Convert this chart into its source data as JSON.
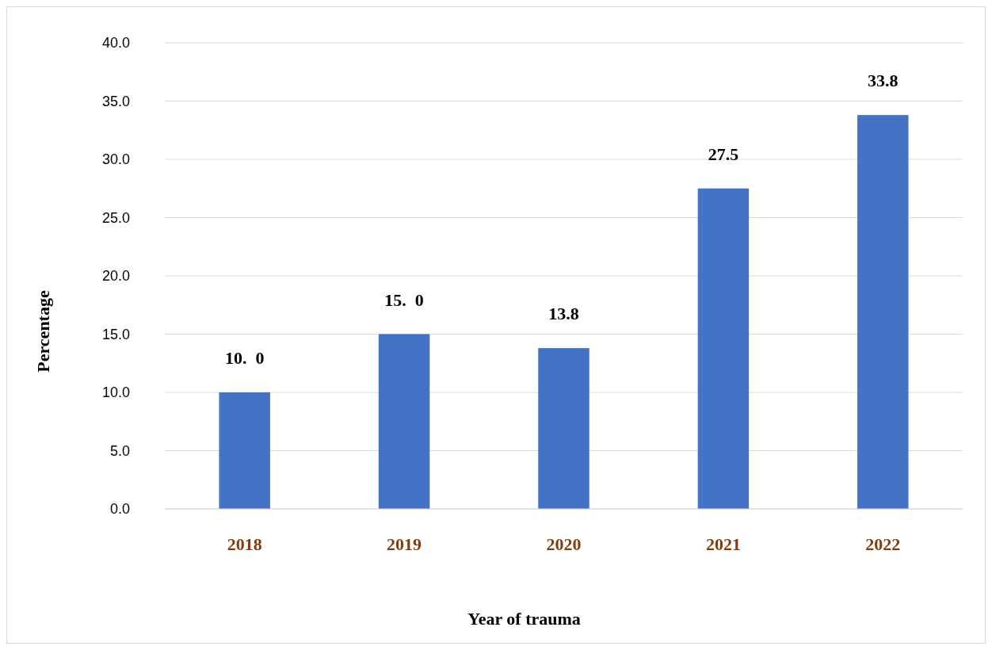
{
  "chart_data": {
    "type": "bar",
    "xlabel": "Year of trauma",
    "ylabel": "Percentage",
    "categories": [
      "2018",
      "2019",
      "2020",
      "2021",
      "2022"
    ],
    "values": [
      10.0,
      15.0,
      13.8,
      27.5,
      33.8
    ],
    "value_labels": [
      "10.  0",
      "15.  0",
      "13.8",
      "27.5",
      "33.8"
    ],
    "color": "#4472c4",
    "ylim": [
      0,
      40
    ],
    "yticks": [
      {
        "value": 0,
        "label": "0.0"
      },
      {
        "value": 5,
        "label": "5.0"
      },
      {
        "value": 10,
        "label": "10.0"
      },
      {
        "value": 15,
        "label": "15.0"
      },
      {
        "value": 20,
        "label": "20.0"
      },
      {
        "value": 25,
        "label": "25.0"
      },
      {
        "value": 30,
        "label": "30.0"
      },
      {
        "value": 35,
        "label": "35.0"
      },
      {
        "value": 40,
        "label": "40.0"
      }
    ],
    "grid": "y"
  }
}
